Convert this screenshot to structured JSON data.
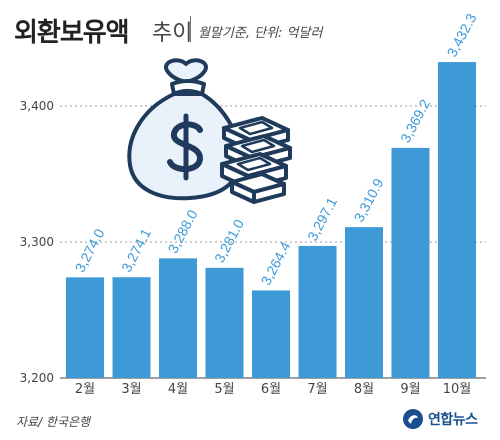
{
  "header": {
    "title": "외환보유액",
    "title_suffix": "추이",
    "subtitle": "월말기준, 단위: 억달러"
  },
  "footer": {
    "source": "자료/ 한국은행",
    "logo": "연합뉴스"
  },
  "colors": {
    "bar": "#3d9ad7",
    "label": "#3d9ad7",
    "grid": "#9a9a9a",
    "axis_text": "#444444"
  },
  "illustration": {
    "icon": "money-bag-and-cash-icon"
  },
  "chart_data": {
    "type": "bar",
    "categories": [
      "2월",
      "3월",
      "4월",
      "5월",
      "6월",
      "7월",
      "8월",
      "9월",
      "10월"
    ],
    "values": [
      3274.0,
      3274.1,
      3288.0,
      3281.0,
      3264.4,
      3297.1,
      3310.9,
      3369.2,
      3432.3
    ],
    "value_labels": [
      "3,274.0",
      "3,274.1",
      "3,288.0",
      "3,281.0",
      "3,264.4",
      "3,297.1",
      "3,310.9",
      "3,369.2",
      "3,432.3"
    ],
    "yticks": [
      3200,
      3300,
      3400
    ],
    "ytick_labels": [
      "3,200",
      "3,300",
      "3,400"
    ],
    "ylim": [
      3200,
      3450
    ],
    "grid": true
  }
}
